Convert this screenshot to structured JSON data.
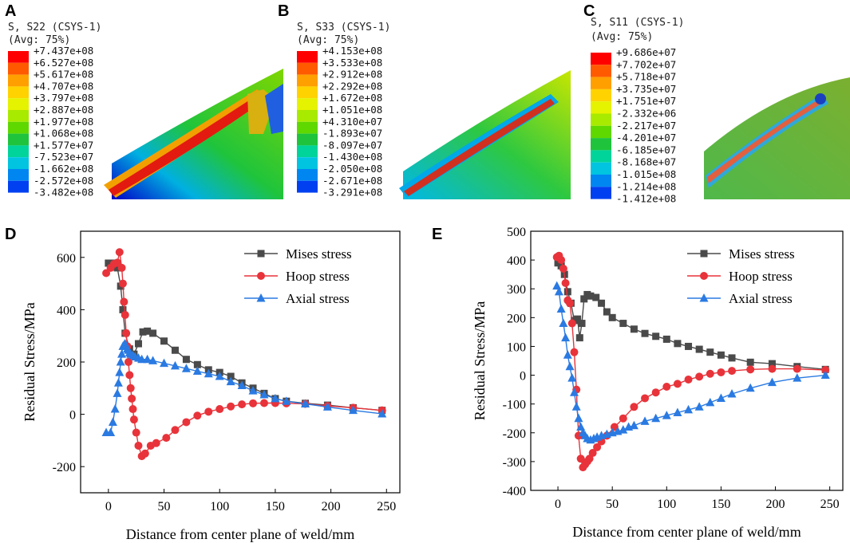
{
  "panels": {
    "A": {
      "letter": "A",
      "title_line1": "S, S22 (CSYS-1)",
      "title_line2": "(Avg: 75%)",
      "values": [
        "+7.437e+08",
        "+6.527e+08",
        "+5.617e+08",
        "+4.707e+08",
        "+3.797e+08",
        "+2.887e+08",
        "+1.977e+08",
        "+1.068e+08",
        "+1.577e+07",
        "-7.523e+07",
        "-1.662e+08",
        "-2.572e+08",
        "-3.482e+08"
      ]
    },
    "B": {
      "letter": "B",
      "title_line1": "S, S33 (CSYS-1)",
      "title_line2": "(Avg: 75%)",
      "values": [
        "+4.153e+08",
        "+3.533e+08",
        "+2.912e+08",
        "+2.292e+08",
        "+1.672e+08",
        "+1.051e+08",
        "+4.310e+07",
        "-1.893e+07",
        "-8.097e+07",
        "-1.430e+08",
        "-2.050e+08",
        "-2.671e+08",
        "-3.291e+08"
      ]
    },
    "C": {
      "letter": "C",
      "title_line1": "S, S11 (CSYS-1)",
      "title_line2": "(Avg: 75%)",
      "values": [
        "+9.686e+07",
        "+7.702e+07",
        "+5.718e+07",
        "+3.735e+07",
        "+1.751e+07",
        "-2.332e+06",
        "-2.217e+07",
        "-4.201e+07",
        "-6.185e+07",
        "-8.168e+07",
        "-1.015e+08",
        "-1.214e+08",
        "-1.412e+08"
      ]
    }
  },
  "contour_colors": [
    "#ff0000",
    "#ff5a00",
    "#ff9f00",
    "#ffd200",
    "#e5f200",
    "#a8ea00",
    "#5fd800",
    "#1fc43c",
    "#00d49a",
    "#00c4e0",
    "#0086f0",
    "#0040f0",
    "#0000d8"
  ],
  "chart_data": [
    {
      "panel": "D",
      "type": "line",
      "xlabel": "Distance from center plane of weld/mm",
      "ylabel": "Residual Stress/MPa",
      "xlim": [
        -25,
        262
      ],
      "ylim": [
        -300,
        700
      ],
      "xticks": [
        0,
        50,
        100,
        150,
        200,
        250
      ],
      "yticks": [
        -200,
        0,
        200,
        400,
        600
      ],
      "legend_position": "top-right",
      "series": [
        {
          "name": "Mises stress",
          "color": "#4a4a4a",
          "marker": "square",
          "x": [
            0,
            5,
            8,
            11,
            13,
            15,
            19,
            23,
            27,
            31,
            35,
            40,
            50,
            60,
            70,
            80,
            90,
            100,
            110,
            120,
            130,
            140,
            150,
            160,
            177,
            197,
            220,
            246
          ],
          "y": [
            578,
            578,
            560,
            490,
            400,
            310,
            250,
            230,
            270,
            315,
            318,
            310,
            280,
            245,
            210,
            190,
            170,
            160,
            145,
            120,
            100,
            80,
            60,
            50,
            42,
            35,
            25,
            15
          ]
        },
        {
          "name": "Hoop stress",
          "color": "#e8333a",
          "marker": "circle",
          "x": [
            -2,
            2,
            5,
            8,
            10,
            12,
            13,
            14,
            15,
            16,
            17,
            18,
            19,
            20,
            21,
            22,
            23,
            25,
            27,
            30,
            33,
            38,
            43,
            52,
            60,
            70,
            80,
            90,
            100,
            110,
            120,
            130,
            140,
            150,
            160,
            177,
            197,
            220,
            246
          ],
          "y": [
            540,
            560,
            575,
            580,
            620,
            560,
            500,
            430,
            380,
            310,
            260,
            200,
            150,
            100,
            60,
            20,
            -20,
            -70,
            -120,
            -160,
            -150,
            -120,
            -110,
            -90,
            -60,
            -30,
            -5,
            10,
            20,
            30,
            38,
            42,
            43,
            43,
            42,
            40,
            32,
            25,
            15
          ]
        },
        {
          "name": "Axial stress",
          "color": "#2a7ae2",
          "marker": "triangle",
          "x": [
            -2,
            2,
            4,
            6,
            8,
            9,
            10,
            11,
            12,
            13,
            14,
            15,
            16,
            17,
            18,
            19,
            20,
            22,
            24,
            27,
            30,
            35,
            40,
            50,
            60,
            70,
            80,
            90,
            100,
            110,
            120,
            130,
            140,
            150,
            160,
            177,
            197,
            220,
            246
          ],
          "y": [
            -70,
            -70,
            -30,
            20,
            80,
            120,
            160,
            200,
            230,
            260,
            265,
            270,
            260,
            250,
            245,
            235,
            230,
            225,
            220,
            215,
            210,
            210,
            205,
            195,
            185,
            175,
            165,
            155,
            145,
            125,
            110,
            90,
            75,
            60,
            50,
            40,
            28,
            15,
            2
          ]
        }
      ]
    },
    {
      "panel": "E",
      "type": "line",
      "xlabel": "Distance from center plane of weld/mm",
      "ylabel": "Residual Stress/MPa",
      "xlim": [
        -25,
        262
      ],
      "ylim": [
        -400,
        500
      ],
      "xticks": [
        0,
        50,
        100,
        150,
        200,
        250
      ],
      "yticks": [
        -400,
        -300,
        -200,
        -100,
        0,
        100,
        200,
        300,
        400,
        500
      ],
      "legend_position": "top-right",
      "series": [
        {
          "name": "Mises  stress",
          "color": "#4a4a4a",
          "marker": "square",
          "x": [
            0,
            3,
            6,
            9,
            12,
            15,
            18,
            20,
            22,
            24,
            27,
            30,
            35,
            40,
            45,
            50,
            60,
            70,
            80,
            90,
            100,
            110,
            120,
            130,
            140,
            150,
            160,
            177,
            197,
            220,
            246
          ],
          "y": [
            390,
            380,
            350,
            290,
            250,
            190,
            195,
            130,
            180,
            265,
            280,
            275,
            270,
            250,
            220,
            200,
            180,
            160,
            145,
            135,
            125,
            110,
            100,
            90,
            80,
            70,
            60,
            45,
            40,
            30,
            20
          ]
        },
        {
          "name": "Hoop stress",
          "color": "#e8333a",
          "marker": "circle",
          "x": [
            -1,
            1,
            3,
            5,
            7,
            9,
            11,
            13,
            15,
            17,
            19,
            21,
            23,
            25,
            27,
            29,
            32,
            36,
            40,
            45,
            52,
            60,
            70,
            80,
            90,
            100,
            110,
            120,
            130,
            140,
            150,
            160,
            177,
            197,
            220,
            246
          ],
          "y": [
            410,
            415,
            400,
            370,
            320,
            260,
            250,
            180,
            80,
            -50,
            -210,
            -290,
            -320,
            -310,
            -300,
            -290,
            -270,
            -250,
            -230,
            -210,
            -180,
            -150,
            -110,
            -80,
            -60,
            -40,
            -30,
            -15,
            -5,
            5,
            10,
            15,
            20,
            22,
            22,
            18
          ]
        },
        {
          "name": "Axial stress",
          "color": "#2a7ae2",
          "marker": "triangle",
          "x": [
            -1,
            1,
            3,
            5,
            7,
            9,
            11,
            13,
            15,
            17,
            19,
            21,
            23,
            25,
            27,
            30,
            33,
            36,
            40,
            45,
            50,
            55,
            60,
            65,
            70,
            80,
            90,
            100,
            110,
            120,
            130,
            140,
            150,
            160,
            177,
            197,
            220,
            246
          ],
          "y": [
            310,
            290,
            230,
            180,
            130,
            70,
            30,
            -10,
            -60,
            -110,
            -150,
            -180,
            -200,
            -210,
            -220,
            -225,
            -220,
            -215,
            -210,
            -205,
            -200,
            -195,
            -190,
            -180,
            -175,
            -160,
            -150,
            -140,
            -130,
            -120,
            -110,
            -95,
            -80,
            -65,
            -45,
            -25,
            -10,
            0
          ]
        }
      ]
    }
  ]
}
